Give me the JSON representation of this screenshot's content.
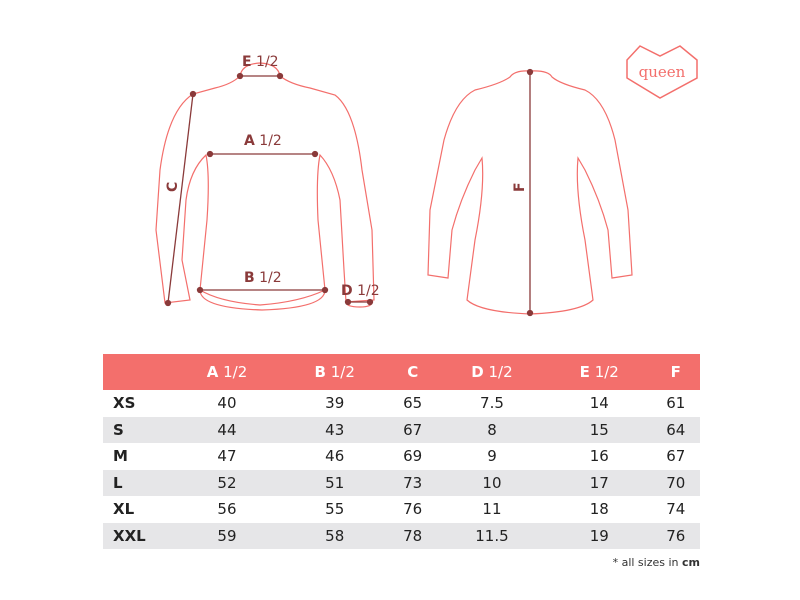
{
  "logo": {
    "text": "queen",
    "color": "#f36f6c"
  },
  "diagram": {
    "labels": {
      "e": "E",
      "e_suffix": "1/2",
      "a": "A",
      "a_suffix": "1/2",
      "b": "B",
      "b_suffix": "1/2",
      "c": "C",
      "d": "D",
      "d_suffix": "1/2",
      "f": "F"
    },
    "outline_color": "#f36f6c",
    "measure_color": "#8a3a3a"
  },
  "table": {
    "header_color": "#f36f6c",
    "columns": [
      {
        "letter": "",
        "suffix": ""
      },
      {
        "letter": "A",
        "suffix": "1/2"
      },
      {
        "letter": "B",
        "suffix": "1/2"
      },
      {
        "letter": "C",
        "suffix": ""
      },
      {
        "letter": "D",
        "suffix": "1/2"
      },
      {
        "letter": "E",
        "suffix": "1/2"
      },
      {
        "letter": "F",
        "suffix": ""
      }
    ],
    "rows": [
      [
        "XS",
        "40",
        "39",
        "65",
        "7.5",
        "14",
        "61"
      ],
      [
        "S",
        "44",
        "43",
        "67",
        "8",
        "15",
        "64"
      ],
      [
        "M",
        "47",
        "46",
        "69",
        "9",
        "16",
        "67"
      ],
      [
        "L",
        "52",
        "51",
        "73",
        "10",
        "17",
        "70"
      ],
      [
        "XL",
        "56",
        "55",
        "76",
        "11",
        "18",
        "74"
      ],
      [
        "XXL",
        "59",
        "58",
        "78",
        "11.5",
        "19",
        "76"
      ]
    ]
  },
  "note": {
    "prefix": "* all sizes in",
    "unit": "cm"
  }
}
